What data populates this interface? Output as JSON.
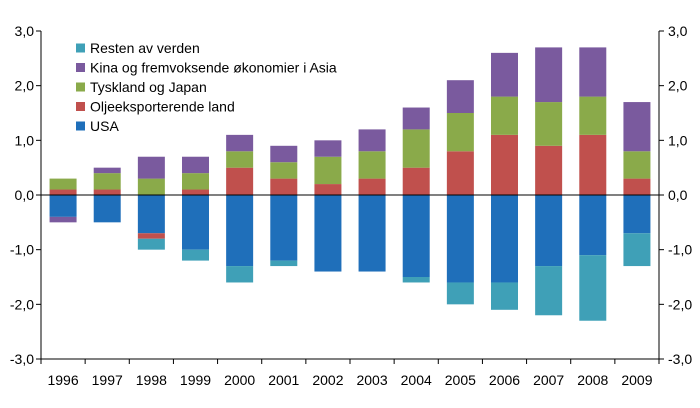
{
  "chart_data": {
    "type": "bar",
    "stacked": true,
    "categories": [
      "1996",
      "1997",
      "1998",
      "1999",
      "2000",
      "2001",
      "2002",
      "2003",
      "2004",
      "2005",
      "2006",
      "2007",
      "2008",
      "2009"
    ],
    "ylim": [
      -3.0,
      3.0
    ],
    "y_ticks": [
      -3.0,
      -2.0,
      -1.0,
      0.0,
      1.0,
      2.0,
      3.0
    ],
    "y_tick_labels": [
      "-3,0",
      "-2,0",
      "-1,0",
      "0,0",
      "1,0",
      "2,0",
      "3,0"
    ],
    "secondary_y_axis": true,
    "grid": false,
    "legend_position": "top-left",
    "title": "",
    "xlabel": "",
    "ylabel": "",
    "series": [
      {
        "name": "USA",
        "color": "#1f6fba",
        "values": [
          -0.4,
          -0.5,
          -0.7,
          -1.0,
          -1.3,
          -1.2,
          -1.4,
          -1.4,
          -1.5,
          -1.6,
          -1.6,
          -1.3,
          -1.1,
          -0.7
        ]
      },
      {
        "name": "Oljeeksporterende land",
        "color": "#c0504d",
        "values": [
          0.1,
          0.1,
          -0.1,
          0.1,
          0.5,
          0.3,
          0.2,
          0.3,
          0.5,
          0.8,
          1.1,
          0.9,
          1.1,
          0.3
        ]
      },
      {
        "name": "Tyskland og Japan",
        "color": "#8aaa4a",
        "values": [
          0.2,
          0.3,
          0.3,
          0.3,
          0.3,
          0.3,
          0.5,
          0.5,
          0.7,
          0.7,
          0.7,
          0.8,
          0.7,
          0.5
        ]
      },
      {
        "name": "Kina og fremvoksende økonomier i Asia",
        "color": "#7a5a9e",
        "values": [
          -0.1,
          0.1,
          0.4,
          0.3,
          0.3,
          0.3,
          0.3,
          0.4,
          0.4,
          0.6,
          0.8,
          1.0,
          0.9,
          0.9
        ]
      },
      {
        "name": "Resten av verden",
        "color": "#3fa0b7",
        "values": [
          0.0,
          0.0,
          -0.2,
          -0.2,
          -0.3,
          -0.1,
          0.0,
          0.0,
          -0.1,
          -0.4,
          -0.5,
          -0.9,
          -1.2,
          -0.6
        ]
      }
    ],
    "legend_order": [
      "Resten av verden",
      "Kina og fremvoksende økonomier i Asia",
      "Tyskland og Japan",
      "Oljeeksporterende land",
      "USA"
    ]
  }
}
